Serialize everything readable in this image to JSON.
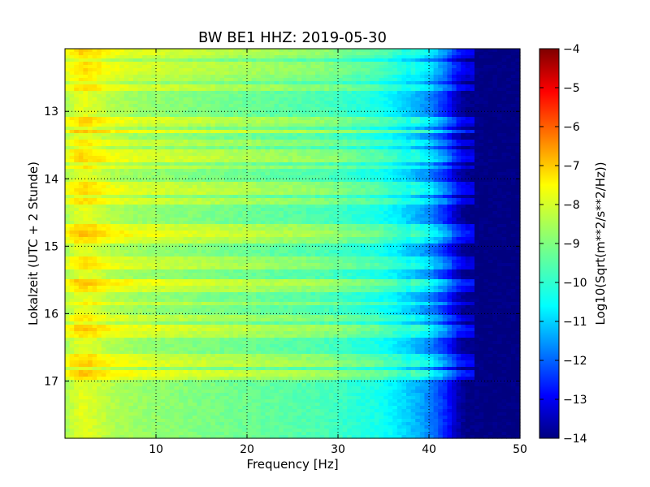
{
  "chart_data": {
    "type": "heatmap",
    "title": "BW BE1 HHZ: 2019-05-30",
    "xlabel": "Frequency [Hz]",
    "ylabel": "Lokalzeit (UTC + 2 Stunde)",
    "xlim": [
      0,
      50
    ],
    "ylim": [
      12.07,
      17.85
    ],
    "y_inverted": true,
    "x_ticks": [
      10,
      20,
      30,
      40,
      50
    ],
    "y_ticks": [
      13,
      14,
      15,
      16,
      17
    ],
    "grid": true,
    "colorbar": {
      "label": "Log10(Sqrt(m**2/s**2/Hz))",
      "range": [
        -14,
        -4
      ],
      "ticks": [
        -4,
        -5,
        -6,
        -7,
        -8,
        -9,
        -10,
        -11,
        -12,
        -13,
        -14
      ],
      "colormap": "jet"
    },
    "colormap_stops": [
      "#00007f",
      "#0000ff",
      "#007fff",
      "#00ffff",
      "#7fff7f",
      "#ffff00",
      "#ff7f00",
      "#ff0000",
      "#7f0000"
    ],
    "frequency_profile": {
      "freq_hz": [
        0,
        1,
        2,
        3,
        5,
        8,
        12,
        16,
        20,
        24,
        28,
        30,
        32,
        34,
        36,
        38,
        40,
        42,
        43,
        44,
        46,
        50
      ],
      "log10_amplitude": [
        -8.7,
        -8.2,
        -8.0,
        -8.15,
        -8.5,
        -8.75,
        -8.9,
        -9.05,
        -9.2,
        -9.35,
        -9.5,
        -9.65,
        -9.85,
        -10.0,
        -10.3,
        -10.8,
        -11.4,
        -12.5,
        -13.4,
        -13.9,
        -14,
        -14
      ]
    },
    "bands": [
      {
        "time": 12.1,
        "delta": 0.7
      },
      {
        "time": 12.18,
        "delta": 0.5
      },
      {
        "time": 12.32,
        "delta": 0.6
      },
      {
        "time": 12.42,
        "delta": 0.6
      },
      {
        "time": 12.52,
        "delta": 0.4
      },
      {
        "time": 12.65,
        "delta": 0.6
      },
      {
        "time": 13.12,
        "delta": 0.7
      },
      {
        "time": 13.2,
        "delta": 0.5
      },
      {
        "time": 13.3,
        "delta": 0.9
      },
      {
        "time": 13.48,
        "delta": 0.5
      },
      {
        "time": 13.62,
        "delta": 0.6
      },
      {
        "time": 13.72,
        "delta": 0.7
      },
      {
        "time": 13.83,
        "delta": 0.5
      },
      {
        "time": 14.08,
        "delta": 0.6
      },
      {
        "time": 14.2,
        "delta": 0.7
      },
      {
        "time": 14.32,
        "delta": 0.6
      },
      {
        "time": 14.7,
        "delta": 0.7
      },
      {
        "time": 14.8,
        "delta": 0.9
      },
      {
        "time": 14.9,
        "delta": 0.6
      },
      {
        "time": 15.2,
        "delta": 0.5
      },
      {
        "time": 15.3,
        "delta": 0.6
      },
      {
        "time": 15.55,
        "delta": 0.9
      },
      {
        "time": 15.62,
        "delta": 0.6
      },
      {
        "time": 15.85,
        "delta": 0.5
      },
      {
        "time": 16.05,
        "delta": 0.5
      },
      {
        "time": 16.2,
        "delta": 0.8
      },
      {
        "time": 16.32,
        "delta": 0.6
      },
      {
        "time": 16.65,
        "delta": 0.6
      },
      {
        "time": 16.75,
        "delta": 0.8
      },
      {
        "time": 16.88,
        "delta": 0.9
      },
      {
        "time": 16.95,
        "delta": 0.6
      }
    ]
  }
}
